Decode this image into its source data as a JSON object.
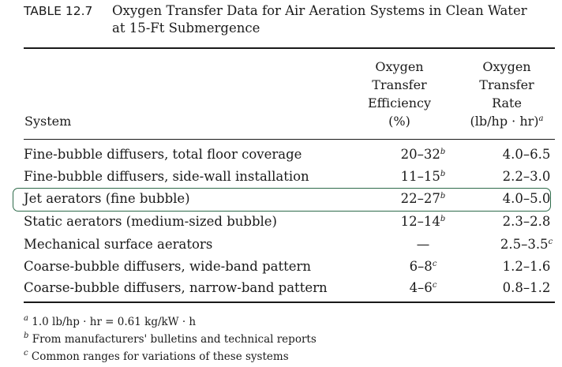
{
  "table": {
    "number": "TABLE 12.7",
    "title_line1": "Oxygen Transfer Data for Air Aeration Systems in Clean Water",
    "title_line2": "at 15-Ft Submergence",
    "headers": {
      "system": "System",
      "efficiency": [
        "Oxygen",
        "Transfer",
        "Efficiency",
        "(%)"
      ],
      "rate": [
        "Oxygen",
        "Transfer",
        "Rate",
        "(lb/hp · hr)"
      ],
      "rate_mark": "a"
    },
    "rows": [
      {
        "system": "Fine-bubble diffusers, total floor coverage",
        "efficiency": "20–32",
        "eff_mark": "b",
        "rate": "4.0–6.5",
        "rate_mark": ""
      },
      {
        "system": "Fine-bubble diffusers, side-wall installation",
        "efficiency": "11–15",
        "eff_mark": "b",
        "rate": "2.2–3.0",
        "rate_mark": ""
      },
      {
        "system": "Jet aerators (fine bubble)",
        "efficiency": "22–27",
        "eff_mark": "b",
        "rate": "4.0–5.0",
        "rate_mark": ""
      },
      {
        "system": "Static aerators (medium-sized bubble)",
        "efficiency": "12–14",
        "eff_mark": "b",
        "rate": "2.3–2.8",
        "rate_mark": ""
      },
      {
        "system": "Mechanical surface aerators",
        "efficiency": "—",
        "eff_mark": "",
        "rate": "2.5–3.5",
        "rate_mark": "c"
      },
      {
        "system": "Coarse-bubble diffusers, wide-band pattern",
        "efficiency": "6–8",
        "eff_mark": "c",
        "rate": "1.2–1.6",
        "rate_mark": ""
      },
      {
        "system": "Coarse-bubble diffusers, narrow-band pattern",
        "efficiency": "4–6",
        "eff_mark": "c",
        "rate": "0.8–1.2",
        "rate_mark": ""
      }
    ],
    "highlighted_row": 2,
    "footnotes": [
      {
        "mark": "a",
        "text": "1.0 lb/hp · hr = 0.61 kg/kW · h"
      },
      {
        "mark": "b",
        "text": "From manufacturers' bulletins and technical reports"
      },
      {
        "mark": "c",
        "text": "Common ranges for variations of these systems"
      }
    ]
  },
  "colors": {
    "highlight_border": "#2e6b4a",
    "text": "#1a1a1a"
  }
}
